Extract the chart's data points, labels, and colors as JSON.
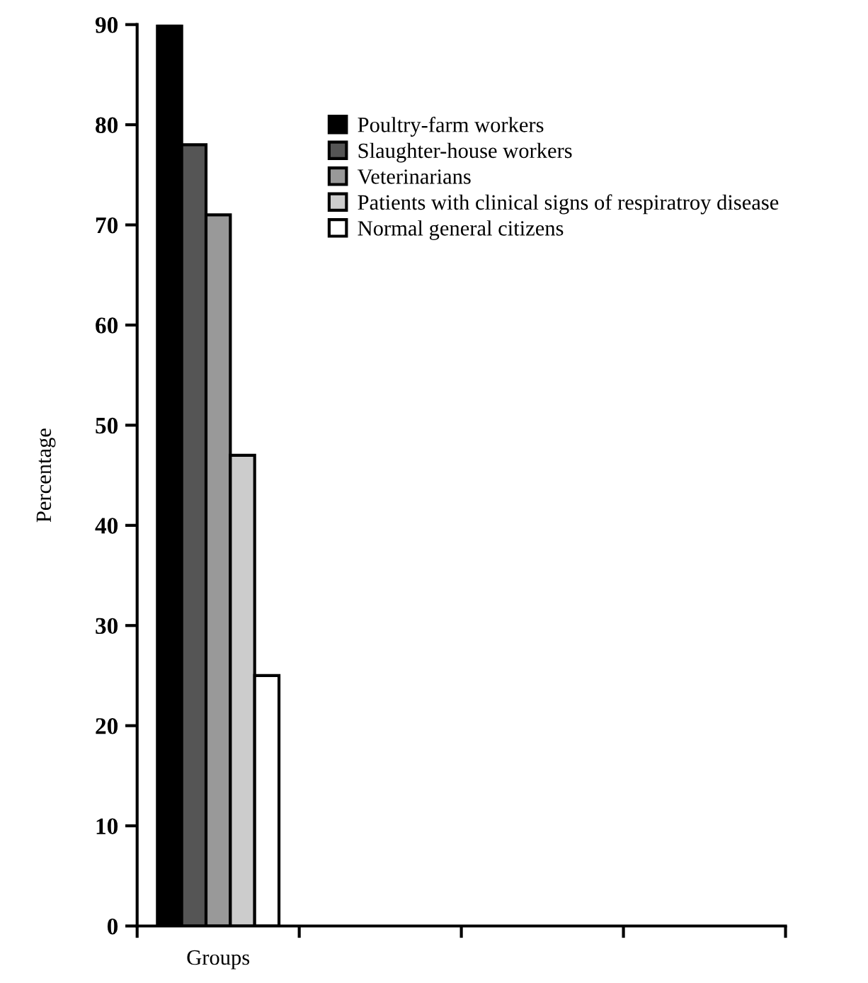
{
  "chart_data": {
    "type": "bar",
    "ylabel": "Percentage",
    "categories": [
      "Groups",
      null,
      null,
      null
    ],
    "series": [
      {
        "name": "Poultry-farm workers",
        "color": "#000000",
        "values": [
          90,
          null,
          null,
          null
        ]
      },
      {
        "name": "Slaughter-house workers",
        "color": "#555555",
        "values": [
          78,
          null,
          null,
          null
        ]
      },
      {
        "name": "Veterinarians",
        "color": "#999999",
        "values": [
          71,
          null,
          null,
          null
        ]
      },
      {
        "name": "Patients with clinical signs of respiratroy disease",
        "color": "#cccccc",
        "values": [
          47,
          null,
          null,
          null
        ]
      },
      {
        "name": "Normal general citizens",
        "color": "#ffffff",
        "values": [
          25,
          null,
          null,
          null
        ]
      }
    ],
    "ylim": [
      0,
      90
    ],
    "yticks": [
      0,
      10,
      20,
      30,
      40,
      50,
      60,
      70,
      80,
      90
    ],
    "grid": false,
    "legend": "top right"
  }
}
